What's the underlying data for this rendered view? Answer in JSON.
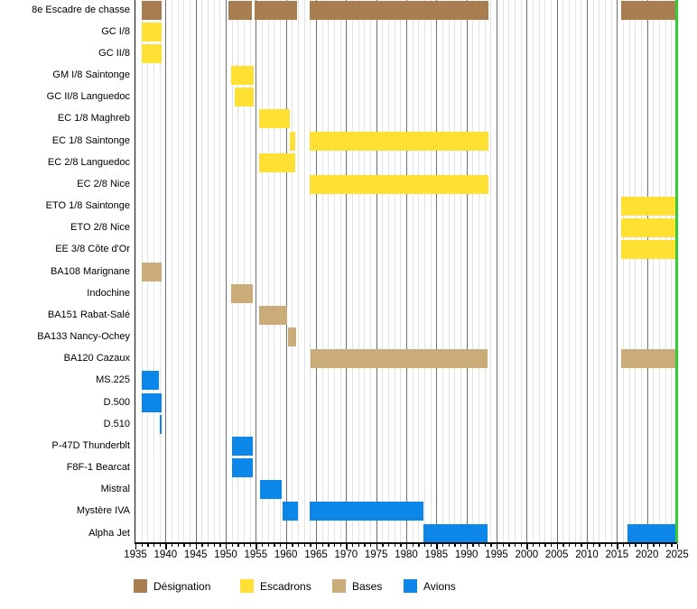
{
  "chart_data": {
    "type": "bar",
    "subtype": "gantt-timeline",
    "title": "",
    "x_axis": {
      "min": 1935,
      "max": 2025,
      "major_step": 5,
      "minor_step": 1,
      "tick_labels": [
        "1935",
        "1940",
        "1945",
        "1950",
        "1955",
        "1960",
        "1965",
        "1970",
        "1975",
        "1980",
        "1985",
        "1990",
        "1995",
        "2000",
        "2005",
        "2010",
        "2015",
        "2020",
        "2025"
      ]
    },
    "colors": {
      "designation": "#A87D50",
      "escadron": "#FFE033",
      "base": "#C9AC78",
      "avion": "#0C86E8",
      "now_marker": "#33CC33",
      "gridline_minor": "#E2E2E2",
      "gridline_major": "#6F6F6F"
    },
    "now_marker_year": 2024.7,
    "legend": [
      {
        "label": "Désignation",
        "category": "designation"
      },
      {
        "label": "Escadrons",
        "category": "escadron"
      },
      {
        "label": "Bases",
        "category": "base"
      },
      {
        "label": "Avions",
        "category": "avion"
      }
    ],
    "rows": [
      {
        "label": "8e Escadre de chasse",
        "category": "designation",
        "segments": [
          [
            1936.0,
            1939.3
          ],
          [
            1950.4,
            1954.4
          ],
          [
            1954.8,
            1961.9
          ],
          [
            1964.0,
            1993.6
          ],
          [
            2015.7,
            2025.1
          ]
        ]
      },
      {
        "label": "GC I/8",
        "category": "escadron",
        "segments": [
          [
            1936.0,
            1939.3
          ]
        ]
      },
      {
        "label": "GC II/8",
        "category": "escadron",
        "segments": [
          [
            1936.0,
            1939.3
          ]
        ]
      },
      {
        "label": "GM I/8 Saintonge",
        "category": "escadron",
        "segments": [
          [
            1950.9,
            1954.6
          ]
        ]
      },
      {
        "label": "GC II/8 Languedoc",
        "category": "escadron",
        "segments": [
          [
            1951.5,
            1954.6
          ]
        ]
      },
      {
        "label": "EC 1/8 Maghreb",
        "category": "escadron",
        "segments": [
          [
            1955.5,
            1960.6
          ]
        ]
      },
      {
        "label": "EC 1/8 Saintonge",
        "category": "escadron",
        "segments": [
          [
            1960.7,
            1961.6
          ],
          [
            1964.0,
            1993.6
          ]
        ]
      },
      {
        "label": "EC 2/8 Languedoc",
        "category": "escadron",
        "segments": [
          [
            1955.5,
            1961.6
          ]
        ]
      },
      {
        "label": "EC 2/8 Nice",
        "category": "escadron",
        "segments": [
          [
            1964.0,
            1993.6
          ]
        ]
      },
      {
        "label": "ETO 1/8 Saintonge",
        "category": "escadron",
        "segments": [
          [
            2015.7,
            2025.1
          ]
        ]
      },
      {
        "label": "ETO 2/8 Nice",
        "category": "escadron",
        "segments": [
          [
            2015.7,
            2025.1
          ]
        ]
      },
      {
        "label": "EE 3/8 Côte d'Or",
        "category": "escadron",
        "segments": [
          [
            2015.7,
            2025.1
          ]
        ]
      },
      {
        "label": "BA108 Marignane",
        "category": "base",
        "segments": [
          [
            1936.0,
            1939.3
          ]
        ]
      },
      {
        "label": "Indochine",
        "category": "base",
        "segments": [
          [
            1950.9,
            1954.5
          ]
        ]
      },
      {
        "label": "BA151 Rabat-Salé",
        "category": "base",
        "segments": [
          [
            1955.6,
            1960.2
          ]
        ]
      },
      {
        "label": "BA133 Nancy-Ochey",
        "category": "base",
        "segments": [
          [
            1960.4,
            1961.7
          ]
        ]
      },
      {
        "label": "BA120 Cazaux",
        "category": "base",
        "segments": [
          [
            1964.1,
            1993.5
          ],
          [
            2015.7,
            2024.7
          ]
        ]
      },
      {
        "label": "MS.225",
        "category": "avion",
        "segments": [
          [
            1936.0,
            1938.9
          ]
        ]
      },
      {
        "label": "D.500",
        "category": "avion",
        "segments": [
          [
            1936.0,
            1939.3
          ]
        ]
      },
      {
        "label": "D.510",
        "category": "avion",
        "segments": [
          [
            1939.0,
            1939.3
          ]
        ]
      },
      {
        "label": "P-47D Thunderblt",
        "category": "avion",
        "segments": [
          [
            1951.0,
            1954.5
          ]
        ]
      },
      {
        "label": "F8F-1 Bearcat",
        "category": "avion",
        "segments": [
          [
            1951.0,
            1954.5
          ]
        ]
      },
      {
        "label": "Mistral",
        "category": "avion",
        "segments": [
          [
            1955.7,
            1959.3
          ]
        ]
      },
      {
        "label": "Mystère IVA",
        "category": "avion",
        "segments": [
          [
            1959.5,
            1962.0
          ],
          [
            1964.0,
            1982.8
          ]
        ]
      },
      {
        "label": "Alpha Jet",
        "category": "avion",
        "segments": [
          [
            1982.8,
            1993.5
          ],
          [
            2016.7,
            2025.1
          ]
        ]
      }
    ]
  }
}
